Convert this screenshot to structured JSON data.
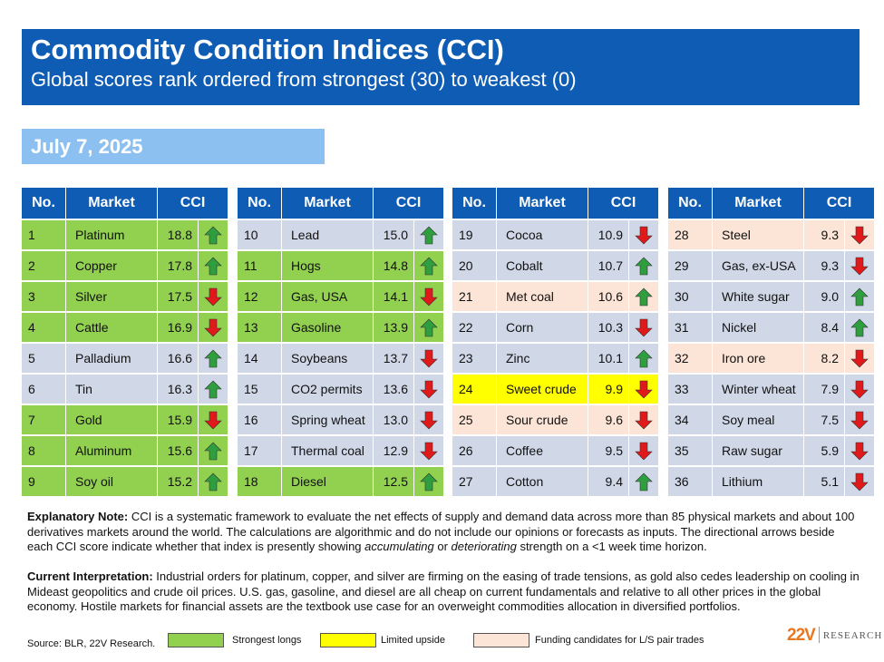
{
  "header": {
    "title": "Commodity Condition Indices (CCI)",
    "subtitle": "Global scores rank ordered from strongest (30) to weakest (0)",
    "date": "July 7, 2025"
  },
  "columns": {
    "no": "No.",
    "market": "Market",
    "cci": "CCI"
  },
  "colors": {
    "header": "#0f5cb4",
    "green": "#92d050",
    "yellow": "#ffff00",
    "peach": "#fce4d6",
    "default": "#d0d8e8",
    "arrow_up": "#2e9e3e",
    "arrow_down": "#e0191b"
  },
  "tables": [
    [
      {
        "no": "1",
        "market": "Platinum",
        "cci": "18.8",
        "dir": "up",
        "hl": "green"
      },
      {
        "no": "2",
        "market": "Copper",
        "cci": "17.8",
        "dir": "up",
        "hl": "green"
      },
      {
        "no": "3",
        "market": "Silver",
        "cci": "17.5",
        "dir": "down",
        "hl": "green"
      },
      {
        "no": "4",
        "market": "Cattle",
        "cci": "16.9",
        "dir": "down",
        "hl": "green"
      },
      {
        "no": "5",
        "market": "Palladium",
        "cci": "16.6",
        "dir": "up",
        "hl": ""
      },
      {
        "no": "6",
        "market": "Tin",
        "cci": "16.3",
        "dir": "up",
        "hl": ""
      },
      {
        "no": "7",
        "market": "Gold",
        "cci": "15.9",
        "dir": "down",
        "hl": "green"
      },
      {
        "no": "8",
        "market": "Aluminum",
        "cci": "15.6",
        "dir": "up",
        "hl": "green"
      },
      {
        "no": "9",
        "market": "Soy oil",
        "cci": "15.2",
        "dir": "up",
        "hl": "green"
      }
    ],
    [
      {
        "no": "10",
        "market": "Lead",
        "cci": "15.0",
        "dir": "up",
        "hl": ""
      },
      {
        "no": "11",
        "market": "Hogs",
        "cci": "14.8",
        "dir": "up",
        "hl": "green"
      },
      {
        "no": "12",
        "market": "Gas, USA",
        "cci": "14.1",
        "dir": "down",
        "hl": "green"
      },
      {
        "no": "13",
        "market": "Gasoline",
        "cci": "13.9",
        "dir": "up",
        "hl": "green"
      },
      {
        "no": "14",
        "market": "Soybeans",
        "cci": "13.7",
        "dir": "down",
        "hl": ""
      },
      {
        "no": "15",
        "market": "CO2 permits",
        "cci": "13.6",
        "dir": "down",
        "hl": ""
      },
      {
        "no": "16",
        "market": "Spring wheat",
        "cci": "13.0",
        "dir": "down",
        "hl": ""
      },
      {
        "no": "17",
        "market": "Thermal coal",
        "cci": "12.9",
        "dir": "down",
        "hl": ""
      },
      {
        "no": "18",
        "market": "Diesel",
        "cci": "12.5",
        "dir": "up",
        "hl": "green"
      }
    ],
    [
      {
        "no": "19",
        "market": "Cocoa",
        "cci": "10.9",
        "dir": "down",
        "hl": ""
      },
      {
        "no": "20",
        "market": "Cobalt",
        "cci": "10.7",
        "dir": "up",
        "hl": ""
      },
      {
        "no": "21",
        "market": "Met coal",
        "cci": "10.6",
        "dir": "up",
        "hl": "peach"
      },
      {
        "no": "22",
        "market": "Corn",
        "cci": "10.3",
        "dir": "down",
        "hl": ""
      },
      {
        "no": "23",
        "market": "Zinc",
        "cci": "10.1",
        "dir": "up",
        "hl": ""
      },
      {
        "no": "24",
        "market": "Sweet crude",
        "cci": "9.9",
        "dir": "down",
        "hl": "yellow"
      },
      {
        "no": "25",
        "market": "Sour crude",
        "cci": "9.6",
        "dir": "down",
        "hl": "peach"
      },
      {
        "no": "26",
        "market": "Coffee",
        "cci": "9.5",
        "dir": "down",
        "hl": ""
      },
      {
        "no": "27",
        "market": "Cotton",
        "cci": "9.4",
        "dir": "up",
        "hl": ""
      }
    ],
    [
      {
        "no": "28",
        "market": "Steel",
        "cci": "9.3",
        "dir": "down",
        "hl": "peach"
      },
      {
        "no": "29",
        "market": "Gas, ex-USA",
        "cci": "9.3",
        "dir": "down",
        "hl": ""
      },
      {
        "no": "30",
        "market": "White sugar",
        "cci": "9.0",
        "dir": "up",
        "hl": ""
      },
      {
        "no": "31",
        "market": "Nickel",
        "cci": "8.4",
        "dir": "up",
        "hl": ""
      },
      {
        "no": "32",
        "market": "Iron ore",
        "cci": "8.2",
        "dir": "down",
        "hl": "peach"
      },
      {
        "no": "33",
        "market": "Winter wheat",
        "cci": "7.9",
        "dir": "down",
        "hl": ""
      },
      {
        "no": "34",
        "market": "Soy meal",
        "cci": "7.5",
        "dir": "down",
        "hl": ""
      },
      {
        "no": "35",
        "market": "Raw sugar",
        "cci": "5.9",
        "dir": "down",
        "hl": ""
      },
      {
        "no": "36",
        "market": "Lithium",
        "cci": "5.1",
        "dir": "down",
        "hl": ""
      }
    ]
  ],
  "explanatory": {
    "label": "Explanatory Note:",
    "text1": " CCI is a systematic framework to evaluate the net effects of supply and demand data across more than 85 physical markets and about 100 derivatives markets around the world. The calculations are algorithmic and do not include our opinions or forecasts as inputs. The directional arrows beside each CCI score indicate whether that index is presently showing ",
    "em1": "accumulating",
    "mid": " or ",
    "em2": "deteriorating",
    "text2": " strength on a <1 week time horizon."
  },
  "interpretation": {
    "label": "Current Interpretation:",
    "text": " Industrial orders for platinum, copper, and silver are firming on the easing of trade tensions, as gold also cedes leadership on cooling in Mideast geopolitics and crude oil prices. U.S. gas, gasoline, and diesel are all cheap on current fundamentals and relative to all other prices in the global economy. Hostile markets for financial assets are the textbook use case for an overweight commodities allocation in diversified portfolios."
  },
  "footer": {
    "source": "Source: BLR, 22V Research.",
    "legend_green": "Strongest longs",
    "legend_yellow": "Limited upside",
    "legend_peach": "Funding candidates for L/S pair trades",
    "logo_num": "22V",
    "logo_text": "RESEARCH"
  }
}
